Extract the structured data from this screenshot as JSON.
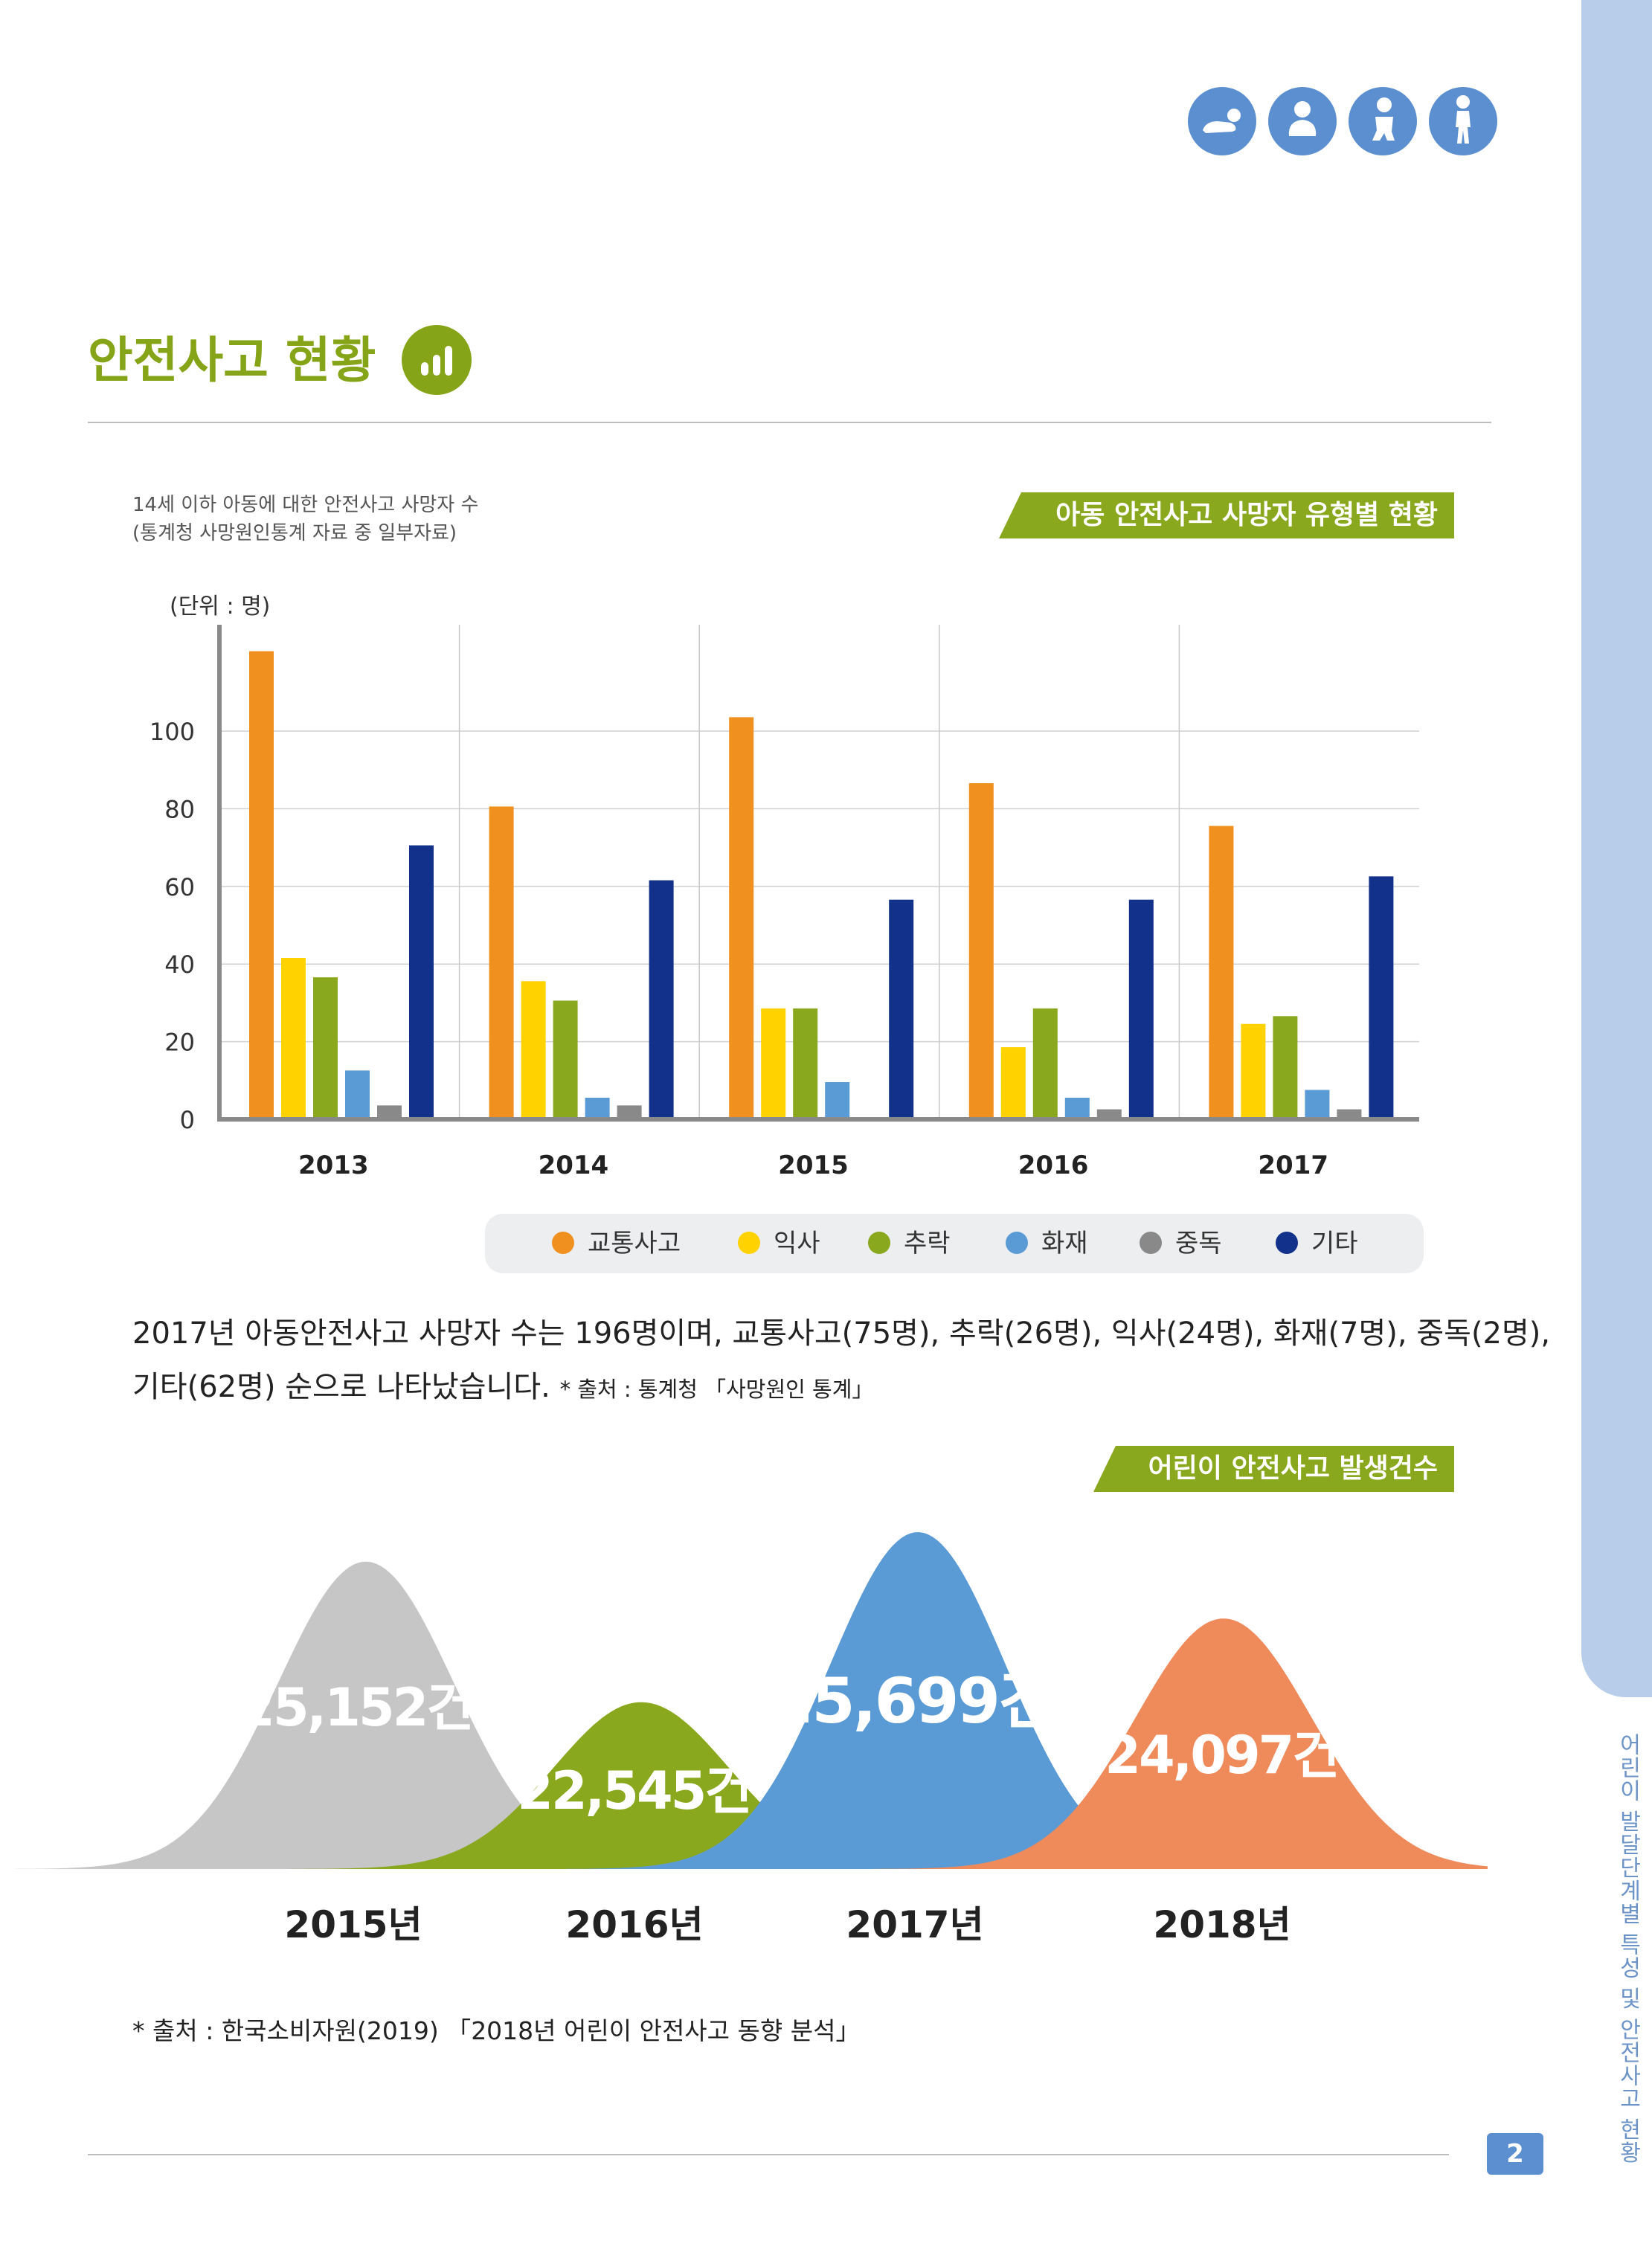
{
  "side": {
    "text": "어린이 발달단계별 특성 및 안전사고 현황",
    "page_number": "2"
  },
  "header_icons": [
    "crawling-baby-icon",
    "sitting-baby-icon",
    "toddler-icon",
    "walking-child-icon"
  ],
  "section": {
    "title": "안전사고 현황"
  },
  "chart1": {
    "note_line1": "14세 이하 아동에 대한 안전사고 사망자 수",
    "note_line2": "(통계청 사망원인통계 자료 중 일부자료)",
    "banner": "아동 안전사고 사망자 유형별 현황",
    "unit": "(단위 : 명)"
  },
  "chart_data": [
    {
      "type": "bar",
      "categories": [
        "2013",
        "2014",
        "2015",
        "2016",
        "2017"
      ],
      "yticks": [
        "0",
        "20",
        "40",
        "60",
        "80",
        "100"
      ],
      "ylim": [
        0,
        120
      ],
      "grid": true,
      "legend_position": "bottom",
      "series": [
        {
          "name": "교통사고",
          "color": "#f0901f",
          "values": [
            120,
            80,
            103,
            86,
            75
          ]
        },
        {
          "name": "익사",
          "color": "#ffd200",
          "values": [
            41,
            35,
            28,
            18,
            24
          ]
        },
        {
          "name": "추락",
          "color": "#8aa81d",
          "values": [
            36,
            30,
            28,
            28,
            26
          ]
        },
        {
          "name": "화재",
          "color": "#5b9bd5",
          "values": [
            12,
            5,
            9,
            5,
            7
          ]
        },
        {
          "name": "중독",
          "color": "#898989",
          "values": [
            3,
            3,
            0,
            2,
            2
          ]
        },
        {
          "name": "기타",
          "color": "#12318a",
          "values": [
            70,
            61,
            56,
            56,
            62
          ]
        }
      ]
    },
    {
      "type": "area",
      "categories": [
        "2015년",
        "2016년",
        "2017년",
        "2018년"
      ],
      "values": [
        25152,
        22545,
        25699,
        24097
      ],
      "value_labels": [
        "25,152건",
        "22,545건",
        "25,699건",
        "24,097건"
      ],
      "colors": [
        "#c6c6c6",
        "#8aa81d",
        "#5b9bd5",
        "#ef8a5b"
      ]
    }
  ],
  "paragraph": {
    "line1": "2017년 아동안전사고 사망자 수는 196명이며, 교통사고(75명), 추락(26명), 익사(24명), 화재(7명), 중독(2명),",
    "line2": "기타(62명) 순으로 나타났습니다.",
    "source": "* 출처 : 통계청 「사망원인 통계」"
  },
  "chart2": {
    "banner": "어린이 안전사고 발생건수"
  },
  "footer_source": "* 출처 : 한국소비자원(2019) 「2018년 어린이 안전사고 동향 분석」"
}
